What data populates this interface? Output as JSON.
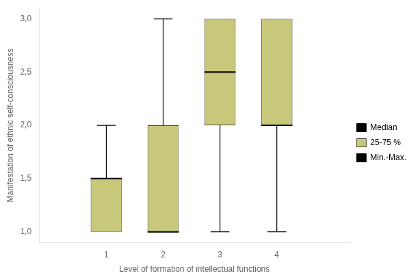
{
  "chart_data": {
    "type": "box",
    "xlabel": "Level of formation of intellectual functions",
    "ylabel": "Manifestation of ethnic self-consciousness",
    "x": [
      1,
      2,
      3,
      4
    ],
    "series": [
      {
        "name": "Median",
        "color": "#000000",
        "values": [
          1.5,
          1.0,
          2.5,
          2.0
        ]
      },
      {
        "name": "25-75 %",
        "color": "#c8c87a",
        "q1": [
          1.0,
          1.0,
          2.0,
          2.0
        ],
        "q3": [
          1.5,
          2.0,
          3.0,
          3.0
        ]
      },
      {
        "name": "Min.-Max.",
        "color": "#000000",
        "min": [
          1.0,
          1.0,
          1.0,
          1.0
        ],
        "max": [
          2.0,
          3.0,
          3.0,
          3.0
        ]
      }
    ],
    "xlim": [
      0.5,
      4.6
    ],
    "ylim": [
      0.9,
      3.1
    ],
    "xticks": [
      1,
      2,
      3,
      4
    ],
    "yticks": [
      {
        "value": 1.0,
        "label": "1,0"
      },
      {
        "value": 1.5,
        "label": "1,5"
      },
      {
        "value": 2.0,
        "label": "2,0"
      },
      {
        "value": 2.5,
        "label": "2,5"
      },
      {
        "value": 3.0,
        "label": "3,0"
      }
    ],
    "grid": false,
    "legend": "right"
  }
}
